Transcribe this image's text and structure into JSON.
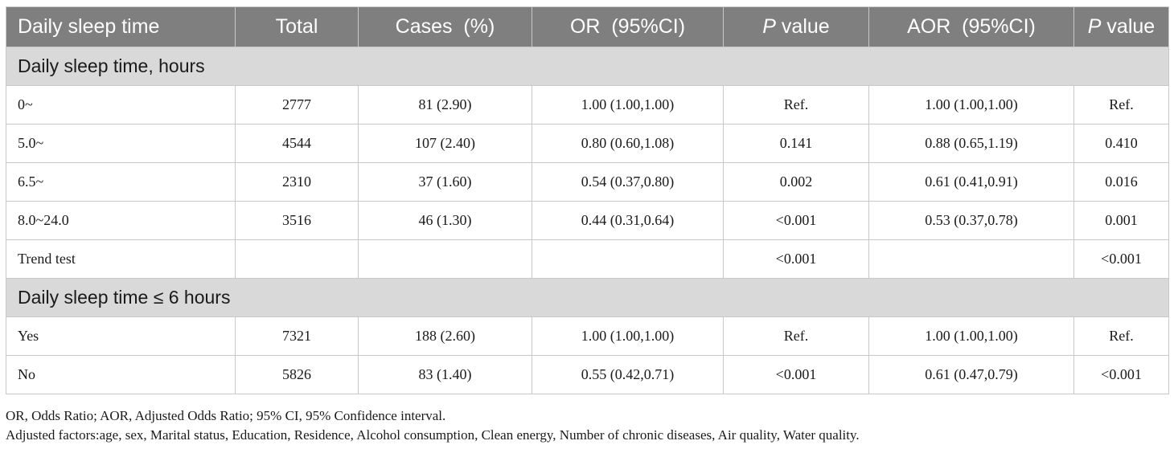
{
  "table": {
    "headers": {
      "col1": "Daily sleep time",
      "col2": "Total",
      "col3": "Cases  (%)",
      "col4": "OR  (95%CI)",
      "col5_italic": "P",
      "col5_rest": " value",
      "col6": "AOR  (95%CI)",
      "col7_italic": "P",
      "col7_rest": " value"
    },
    "section1": {
      "title": "Daily sleep time, hours",
      "rows": [
        {
          "label": "0~",
          "total": "2777",
          "cases": "81 (2.90)",
          "or": "1.00 (1.00,1.00)",
          "p": "Ref.",
          "aor": "1.00 (1.00,1.00)",
          "ap": "Ref."
        },
        {
          "label": "5.0~",
          "total": "4544",
          "cases": "107 (2.40)",
          "or": "0.80 (0.60,1.08)",
          "p": "0.141",
          "aor": "0.88 (0.65,1.19)",
          "ap": "0.410"
        },
        {
          "label": "6.5~",
          "total": "2310",
          "cases": "37 (1.60)",
          "or": "0.54 (0.37,0.80)",
          "p": "0.002",
          "aor": "0.61 (0.41,0.91)",
          "ap": "0.016"
        },
        {
          "label": "8.0~24.0",
          "total": "3516",
          "cases": "46 (1.30)",
          "or": "0.44 (0.31,0.64)",
          "p": "<0.001",
          "aor": "0.53 (0.37,0.78)",
          "ap": "0.001"
        },
        {
          "label": "Trend test",
          "total": "",
          "cases": "",
          "or": "",
          "p": "<0.001",
          "aor": "",
          "ap": "<0.001"
        }
      ]
    },
    "section2": {
      "title": "Daily sleep time ≤ 6 hours",
      "rows": [
        {
          "label": "Yes",
          "total": "7321",
          "cases": "188 (2.60)",
          "or": "1.00 (1.00,1.00)",
          "p": "Ref.",
          "aor": "1.00 (1.00,1.00)",
          "ap": "Ref."
        },
        {
          "label": "No",
          "total": "5826",
          "cases": "83 (1.40)",
          "or": "0.55 (0.42,0.71)",
          "p": "<0.001",
          "aor": "0.61 (0.47,0.79)",
          "ap": "<0.001"
        }
      ]
    }
  },
  "footnotes": {
    "abbrev": "OR, Odds Ratio; AOR, Adjusted Odds Ratio; 95% CI, 95% Confidence interval.",
    "adjusted": "Adjusted factors:age, sex, Marital status, Education, Residence, Alcohol consumption, Clean energy, Number of chronic diseases, Air quality, Water quality."
  }
}
